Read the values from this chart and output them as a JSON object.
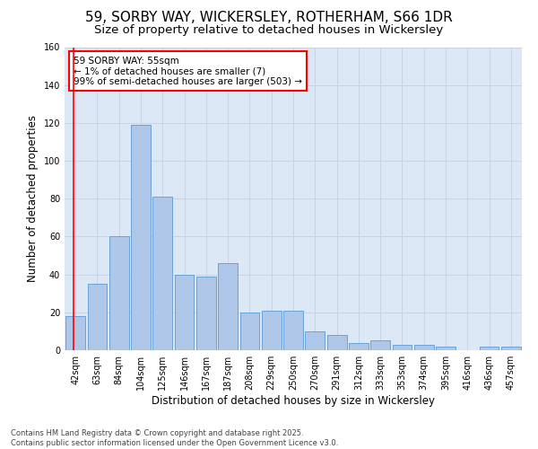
{
  "title_line1": "59, SORBY WAY, WICKERSLEY, ROTHERHAM, S66 1DR",
  "title_line2": "Size of property relative to detached houses in Wickersley",
  "xlabel": "Distribution of detached houses by size in Wickersley",
  "ylabel": "Number of detached properties",
  "bar_labels": [
    "42sqm",
    "63sqm",
    "84sqm",
    "104sqm",
    "125sqm",
    "146sqm",
    "167sqm",
    "187sqm",
    "208sqm",
    "229sqm",
    "250sqm",
    "270sqm",
    "291sqm",
    "312sqm",
    "333sqm",
    "353sqm",
    "374sqm",
    "395sqm",
    "416sqm",
    "436sqm",
    "457sqm"
  ],
  "bar_values": [
    18,
    35,
    60,
    119,
    81,
    40,
    39,
    46,
    20,
    21,
    21,
    10,
    8,
    4,
    5,
    3,
    3,
    2,
    0,
    2,
    2
  ],
  "bar_color": "#aec6e8",
  "bar_edge_color": "#5b9bd5",
  "annotation_text": "59 SORBY WAY: 55sqm\n← 1% of detached houses are smaller (7)\n99% of semi-detached houses are larger (503) →",
  "annotation_box_color": "white",
  "annotation_box_edge_color": "red",
  "vline_color": "red",
  "ylim": [
    0,
    160
  ],
  "yticks": [
    0,
    20,
    40,
    60,
    80,
    100,
    120,
    140,
    160
  ],
  "grid_color": "#c8d4e3",
  "background_color": "#dce8f5",
  "footer_text": "Contains HM Land Registry data © Crown copyright and database right 2025.\nContains public sector information licensed under the Open Government Licence v3.0.",
  "title_fontsize": 11,
  "subtitle_fontsize": 9.5,
  "axis_label_fontsize": 8.5,
  "tick_fontsize": 7,
  "annotation_fontsize": 7.5,
  "footer_fontsize": 6
}
